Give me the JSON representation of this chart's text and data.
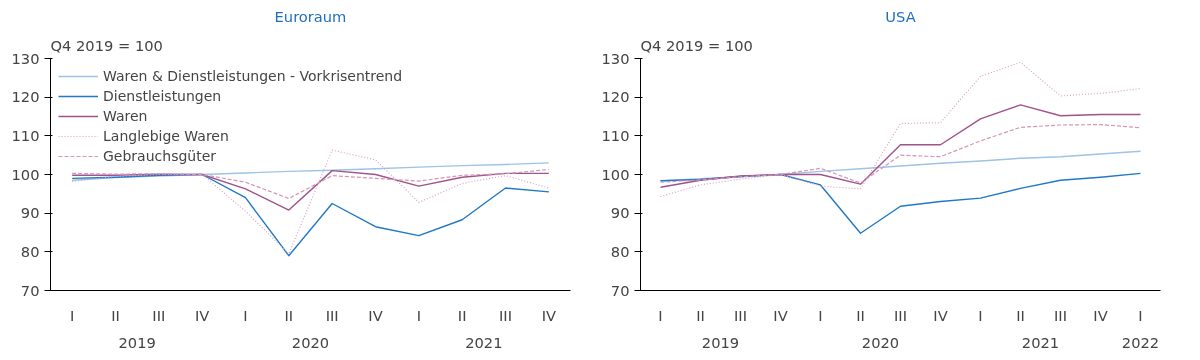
{
  "chart_data": [
    {
      "type": "line",
      "title": "Euroraum",
      "ylabel": "Q4 2019 = 100",
      "categories": [
        "I",
        "II",
        "III",
        "IV",
        "I",
        "II",
        "III",
        "IV",
        "I",
        "II",
        "III",
        "IV"
      ],
      "annotations": [
        "2019",
        "2020",
        "2021"
      ],
      "ylim": [
        70,
        130
      ],
      "yticks": [
        70,
        80,
        90,
        100,
        110,
        120,
        130
      ],
      "grid": false,
      "legend": "top left",
      "series": [
        {
          "name": "Waren & Dienstleistungen - Vorkrisentrend",
          "color": "#9dc3e6",
          "line_style": "solid",
          "values": [
            98.5,
            99.2,
            99.6,
            100,
            100.4,
            100.8,
            101.1,
            101.5,
            101.9,
            102.3,
            102.6,
            103.0
          ]
        },
        {
          "name": "Dienstleistungen",
          "color": "#1f78c8",
          "line_style": "solid",
          "values": [
            99,
            99.3,
            99.8,
            100,
            94,
            79,
            92.5,
            86.5,
            84.2,
            88.3,
            96.5,
            95.5
          ]
        },
        {
          "name": "Waren",
          "color": "#a0528a",
          "line_style": "solid",
          "values": [
            99.8,
            99.8,
            100.1,
            100,
            96.3,
            90.8,
            101,
            100,
            97,
            99.3,
            100.3,
            100.3
          ]
        },
        {
          "name": "Langlebige Waren",
          "color": "#d9a0c0",
          "line_style": "dotted",
          "values": [
            98.2,
            99.5,
            100,
            100,
            90.5,
            79.5,
            106.3,
            103.8,
            92.8,
            97.7,
            99.7,
            96.5
          ]
        },
        {
          "name": "Gebrauchsgüter",
          "color": "#d495b5",
          "line_style": "dashed",
          "values": [
            100.3,
            100.1,
            100.2,
            100,
            98,
            93.8,
            99.7,
            99,
            98.3,
            99.8,
            100.2,
            101.3
          ]
        }
      ]
    },
    {
      "type": "line",
      "title": "USA",
      "ylabel": "Q4 2019 = 100",
      "categories": [
        "I",
        "II",
        "III",
        "IV",
        "I",
        "II",
        "III",
        "IV",
        "I",
        "II",
        "III",
        "IV",
        "I"
      ],
      "annotations": [
        "2019",
        "2020",
        "2021",
        "2022"
      ],
      "ylim": [
        70,
        130
      ],
      "yticks": [
        70,
        80,
        90,
        100,
        110,
        120,
        130
      ],
      "grid": false,
      "legend": false,
      "series": [
        {
          "color": "#9dc3e6",
          "line_style": "solid",
          "values": [
            98.3,
            98.9,
            99.4,
            100,
            100.8,
            101.5,
            102.2,
            102.9,
            103.5,
            104.2,
            104.6,
            105.3,
            106
          ]
        },
        {
          "color": "#1f78c8",
          "line_style": "solid",
          "values": [
            98.4,
            98.7,
            99.5,
            100,
            97.3,
            84.8,
            91.8,
            93,
            93.9,
            96.4,
            98.5,
            99.3,
            100.3
          ]
        },
        {
          "color": "#a0528a",
          "line_style": "solid",
          "values": [
            96.7,
            98.5,
            99.6,
            100,
            100,
            97.5,
            107.7,
            107.7,
            114.4,
            118,
            115.2,
            115.5,
            115.5
          ]
        },
        {
          "color": "#d9a0c0",
          "line_style": "dotted",
          "values": [
            94.3,
            97.3,
            98.8,
            100,
            97,
            96.3,
            113.2,
            113.4,
            125.4,
            129,
            120.3,
            121,
            122.2
          ]
        },
        {
          "color": "#d495b5",
          "line_style": "dashed",
          "values": [
            98,
            98.6,
            99.4,
            100,
            101.6,
            97.8,
            105,
            104.6,
            108.7,
            112.2,
            112.8,
            112.9,
            112.1
          ]
        }
      ]
    }
  ]
}
